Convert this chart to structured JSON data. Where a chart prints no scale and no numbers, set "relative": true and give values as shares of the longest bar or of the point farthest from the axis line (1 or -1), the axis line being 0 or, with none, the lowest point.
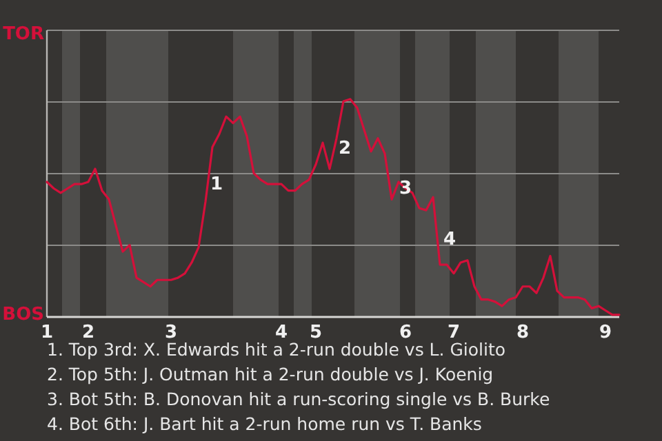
{
  "chart_data": {
    "type": "line",
    "relative": true,
    "categories": [
      "1",
      null,
      null,
      null,
      null,
      null,
      "2",
      null,
      null,
      null,
      null,
      null,
      null,
      null,
      null,
      null,
      null,
      null,
      "3",
      null,
      null,
      null,
      null,
      null,
      null,
      null,
      null,
      null,
      null,
      null,
      null,
      null,
      null,
      null,
      "4",
      null,
      null,
      null,
      null,
      "5",
      null,
      null,
      null,
      null,
      null,
      null,
      null,
      null,
      null,
      null,
      null,
      null,
      "6",
      null,
      null,
      null,
      null,
      null,
      null,
      "7",
      null,
      null,
      null,
      null,
      null,
      null,
      null,
      null,
      null,
      "8",
      null,
      null,
      null,
      null,
      null,
      null,
      null,
      null,
      null,
      null,
      null,
      "9",
      null,
      null
    ],
    "series": [
      {
        "color": "#d4103a",
        "values": [
          0.62,
          0.59,
          0.57,
          0.59,
          0.61,
          0.61,
          0.62,
          0.68,
          0.58,
          0.54,
          0.42,
          0.3,
          0.33,
          0.18,
          0.16,
          0.14,
          0.17,
          0.17,
          0.17,
          0.18,
          0.2,
          0.25,
          0.32,
          0.53,
          0.78,
          0.84,
          0.92,
          0.89,
          0.92,
          0.83,
          0.66,
          0.63,
          0.61,
          0.61,
          0.61,
          0.58,
          0.58,
          0.61,
          0.63,
          0.7,
          0.8,
          0.68,
          0.82,
          0.99,
          1,
          0.96,
          0.86,
          0.76,
          0.82,
          0.75,
          0.54,
          0.62,
          0.59,
          0.57,
          0.5,
          0.49,
          0.55,
          0.24,
          0.24,
          0.2,
          0.25,
          0.26,
          0.14,
          0.08,
          0.08,
          0.07,
          0.05,
          0.08,
          0.09,
          0.14,
          0.14,
          0.11,
          0.18,
          0.28,
          0.12,
          0.09,
          0.09,
          0.09,
          0.08,
          0.04,
          0.05,
          0.03,
          0.01,
          0.01
        ]
      }
    ],
    "ref_lines": [
      {
        "axis": "y",
        "value": 0.329,
        "color": "#8c8b89"
      },
      {
        "axis": "y",
        "value": 0.658,
        "color": "#8c8b89"
      },
      {
        "axis": "y",
        "value": 0.987,
        "color": "#8c8b89"
      },
      {
        "axis": "y",
        "value": 1.316,
        "color": "#8c8b89"
      }
    ],
    "marker": "none",
    "line_style": "solid",
    "annotations": [
      "TOR",
      "BOS",
      "1",
      "2",
      "3",
      "4",
      "1. Top 3rd: X. Edwards hit a 2-run double vs L. Giolito",
      "2. Top 5th: J. Outman hit a 2-run double vs J. Koenig",
      "3. Bot 5th: B. Donovan hit a run-scoring single vs B. Burke",
      "4. Bot 6th: J. Bart hit a 2-run home run vs T. Banks"
    ]
  }
}
